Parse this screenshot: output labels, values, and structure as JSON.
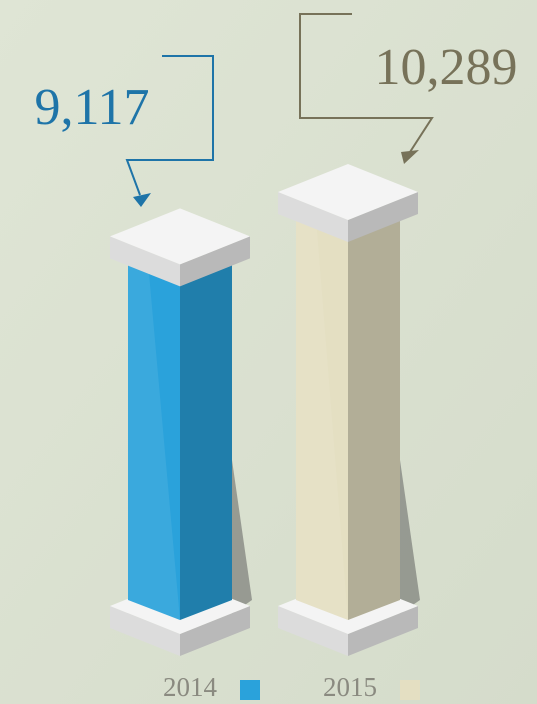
{
  "chart_data": {
    "type": "bar",
    "categories": [
      "2014",
      "2015"
    ],
    "values": [
      9117,
      10289
    ],
    "value_labels": [
      "9,117",
      "10,289"
    ],
    "colors": [
      "#2aa2db",
      "#e4dfc2"
    ]
  }
}
